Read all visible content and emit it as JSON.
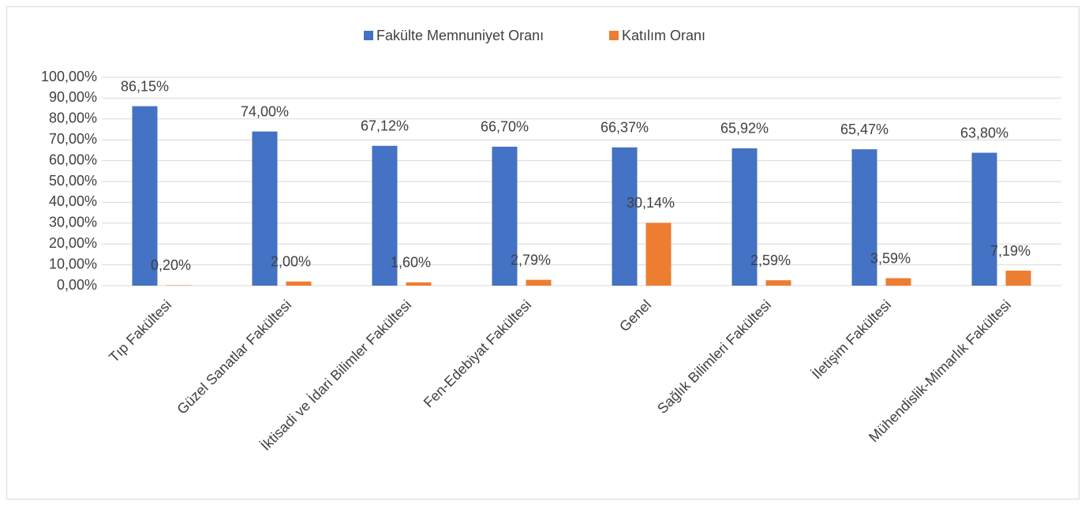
{
  "chart_data": {
    "type": "bar",
    "categories": [
      "Tıp Fakültesi",
      "Güzel Sanatlar Fakültesi",
      "İktisadi ve İdari Bilimler Fakültesi",
      "Fen-Edebiyat Fakültesi",
      "Genel",
      "Sağlık Bilimleri Fakültesi",
      "İletişim Fakültesi",
      "Mühendislik-Mimarlık Fakültesi"
    ],
    "series": [
      {
        "name": "Fakülte Memnuniyet Oranı",
        "color": "#4472c4",
        "values": [
          86.15,
          74.0,
          67.12,
          66.7,
          66.37,
          65.92,
          65.47,
          63.8
        ],
        "value_labels": [
          "86,15%",
          "74,00%",
          "67,12%",
          "66,70%",
          "66,37%",
          "65,92%",
          "65,47%",
          "63,80%"
        ]
      },
      {
        "name": "Katılım Oranı",
        "color": "#ed7d31",
        "values": [
          0.2,
          2.0,
          1.6,
          2.79,
          30.14,
          2.59,
          3.59,
          7.19
        ],
        "value_labels": [
          "0,20%",
          "2,00%",
          "1,60%",
          "2,79%",
          "30,14%",
          "2,59%",
          "3,59%",
          "7,19%"
        ]
      }
    ],
    "ylim": [
      0,
      100
    ],
    "yticks": [
      {
        "value": 0,
        "label": "0,00%"
      },
      {
        "value": 10,
        "label": "10,00%"
      },
      {
        "value": 20,
        "label": "20,00%"
      },
      {
        "value": 30,
        "label": "30,00%"
      },
      {
        "value": 40,
        "label": "40,00%"
      },
      {
        "value": 50,
        "label": "50,00%"
      },
      {
        "value": 60,
        "label": "60,00%"
      },
      {
        "value": 70,
        "label": "70,00%"
      },
      {
        "value": 80,
        "label": "80,00%"
      },
      {
        "value": 90,
        "label": "90,00%"
      },
      {
        "value": 100,
        "label": "100,00%"
      }
    ],
    "grid": true,
    "legend": "top"
  }
}
